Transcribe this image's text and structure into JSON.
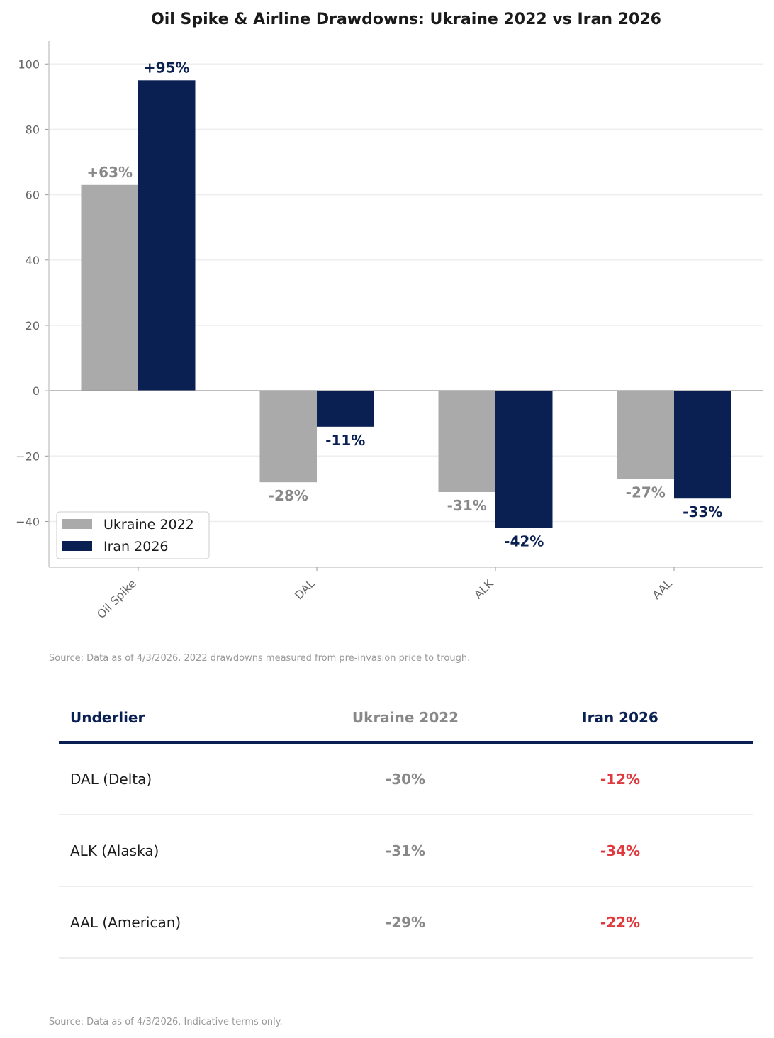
{
  "chart_data": {
    "type": "bar",
    "title": "Oil Spike & Airline Drawdowns: Ukraine 2022 vs Iran 2026",
    "categories": [
      "Oil Spike",
      "DAL",
      "ALK",
      "AAL"
    ],
    "series": [
      {
        "name": "Ukraine 2022",
        "values": [
          63,
          -28,
          -31,
          -27
        ],
        "labels": [
          "+63%",
          "-28%",
          "-31%",
          "-27%"
        ],
        "color": "#aaaaaa",
        "label_color": "#888888"
      },
      {
        "name": "Iran 2026",
        "values": [
          95,
          -11,
          -42,
          -33
        ],
        "labels": [
          "+95%",
          "-11%",
          "-42%",
          "-33%"
        ],
        "color": "#0a1f52",
        "label_color": "#0a1f52"
      }
    ],
    "xlabel": "",
    "ylabel": "",
    "ylim": [
      -54,
      107
    ],
    "yticks": [
      100,
      80,
      60,
      40,
      20,
      0,
      -20,
      -40
    ],
    "ytick_labels": [
      "100",
      "80",
      "60",
      "40",
      "20",
      "0",
      "−20",
      "−40"
    ],
    "grid": true,
    "legend": "bottom-left"
  },
  "chart_source": "Source: Data as of 4/3/2026. 2022 drawdowns measured from pre-invasion price to trough.",
  "table": {
    "headers": [
      "Underlier",
      "Ukraine 2022",
      "Iran 2026"
    ],
    "rows": [
      [
        "DAL (Delta)",
        "-30%",
        "-12%"
      ],
      [
        "ALK (Alaska)",
        "-31%",
        "-34%"
      ],
      [
        "AAL (American)",
        "-29%",
        "-22%"
      ]
    ],
    "accent": "#e0393e"
  },
  "table_source": "Source: Data as of 4/3/2026. Indicative terms only."
}
